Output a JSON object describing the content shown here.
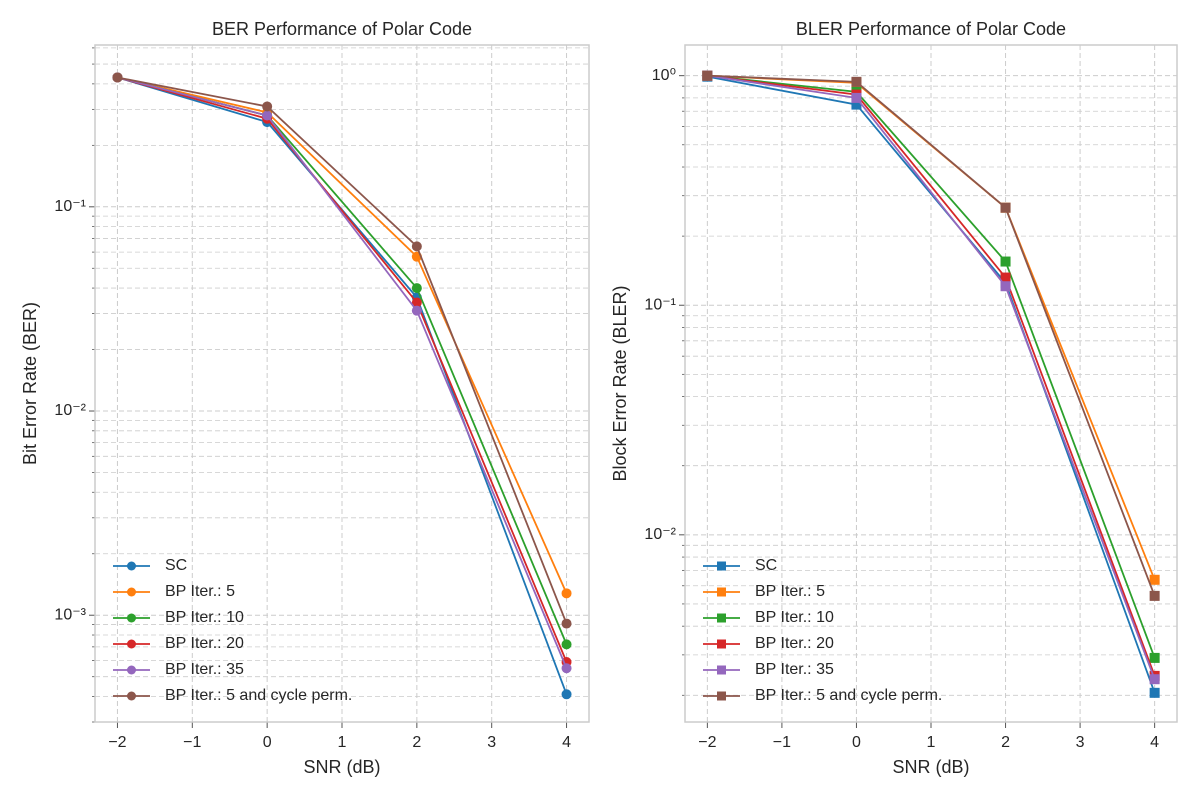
{
  "chart_data": [
    {
      "type": "line",
      "title": "BER Performance of Polar Code",
      "xlabel": "SNR (dB)",
      "ylabel": "Bit Error Rate (BER)",
      "x": [
        -2,
        0,
        2,
        4
      ],
      "marker": "circle",
      "yscale": "log",
      "grid": true,
      "legend": "lower left",
      "xlim": [
        -2.3,
        4.3
      ],
      "ylim": [
        0.0003,
        0.62
      ],
      "xticks": [
        {
          "value": -2,
          "label": "−2"
        },
        {
          "value": -1,
          "label": "−1"
        },
        0,
        1,
        2,
        3,
        4
      ],
      "yticks": [
        {
          "value": 0.1,
          "label": "10⁻¹"
        },
        {
          "value": 0.01,
          "label": "10⁻²"
        },
        {
          "value": 0.001,
          "label": "10⁻³"
        }
      ],
      "yminorticks": [
        0.0003,
        0.0004,
        0.0005,
        0.0006,
        0.0007,
        0.0008,
        0.0009,
        0.002,
        0.003,
        0.004,
        0.005,
        0.006,
        0.007,
        0.008,
        0.009,
        0.02,
        0.03,
        0.04,
        0.05,
        0.06,
        0.07,
        0.08,
        0.09,
        0.2,
        0.3,
        0.4,
        0.5,
        0.6
      ],
      "series": [
        {
          "name": "SC",
          "color": "#1f77b4",
          "values": [
            0.43,
            0.26,
            0.036,
            0.00041
          ]
        },
        {
          "name": "BP Iter.: 5",
          "color": "#ff7f0e",
          "values": [
            0.43,
            0.29,
            0.057,
            0.00128
          ]
        },
        {
          "name": "BP Iter.: 10",
          "color": "#2ca02c",
          "values": [
            0.43,
            0.28,
            0.04,
            0.00072
          ]
        },
        {
          "name": "BP Iter.: 20",
          "color": "#d62728",
          "values": [
            0.43,
            0.27,
            0.034,
            0.00059
          ]
        },
        {
          "name": "BP Iter.: 35",
          "color": "#9467bd",
          "values": [
            0.43,
            0.28,
            0.031,
            0.00055
          ]
        },
        {
          "name": "BP Iter.: 5 and cycle perm.",
          "color": "#8c564b",
          "values": [
            0.43,
            0.31,
            0.064,
            0.00091
          ]
        }
      ]
    },
    {
      "type": "line",
      "title": "BLER Performance of Polar Code",
      "xlabel": "SNR (dB)",
      "ylabel": "Block Error Rate (BLER)",
      "x": [
        -2,
        0,
        2,
        4
      ],
      "marker": "square",
      "yscale": "log",
      "grid": true,
      "legend": "lower left",
      "xlim": [
        -2.3,
        4.3
      ],
      "ylim": [
        0.00153,
        1.36
      ],
      "xticks": [
        {
          "value": -2,
          "label": "−2"
        },
        {
          "value": -1,
          "label": "−1"
        },
        0,
        1,
        2,
        3,
        4
      ],
      "yticks": [
        {
          "value": 1,
          "label": "10⁰"
        },
        {
          "value": 0.1,
          "label": "10⁻¹"
        },
        {
          "value": 0.01,
          "label": "10⁻²"
        }
      ],
      "yminorticks": [
        0.002,
        0.003,
        0.004,
        0.005,
        0.006,
        0.007,
        0.008,
        0.009,
        0.02,
        0.03,
        0.04,
        0.05,
        0.06,
        0.07,
        0.08,
        0.09,
        0.2,
        0.3,
        0.4,
        0.5,
        0.6,
        0.7,
        0.8,
        0.9
      ],
      "series": [
        {
          "name": "SC",
          "color": "#1f77b4",
          "values": [
            0.99,
            0.748,
            0.125,
            0.00205
          ]
        },
        {
          "name": "BP Iter.: 5",
          "color": "#ff7f0e",
          "values": [
            1.0,
            0.93,
            0.266,
            0.00637
          ]
        },
        {
          "name": "BP Iter.: 10",
          "color": "#2ca02c",
          "values": [
            1.0,
            0.85,
            0.155,
            0.00291
          ]
        },
        {
          "name": "BP Iter.: 20",
          "color": "#d62728",
          "values": [
            1.0,
            0.827,
            0.132,
            0.00243
          ]
        },
        {
          "name": "BP Iter.: 35",
          "color": "#9467bd",
          "values": [
            1.0,
            0.8,
            0.121,
            0.00235
          ]
        },
        {
          "name": "BP Iter.: 5 and cycle perm.",
          "color": "#8c564b",
          "values": [
            1.0,
            0.94,
            0.266,
            0.00542
          ]
        }
      ]
    }
  ]
}
